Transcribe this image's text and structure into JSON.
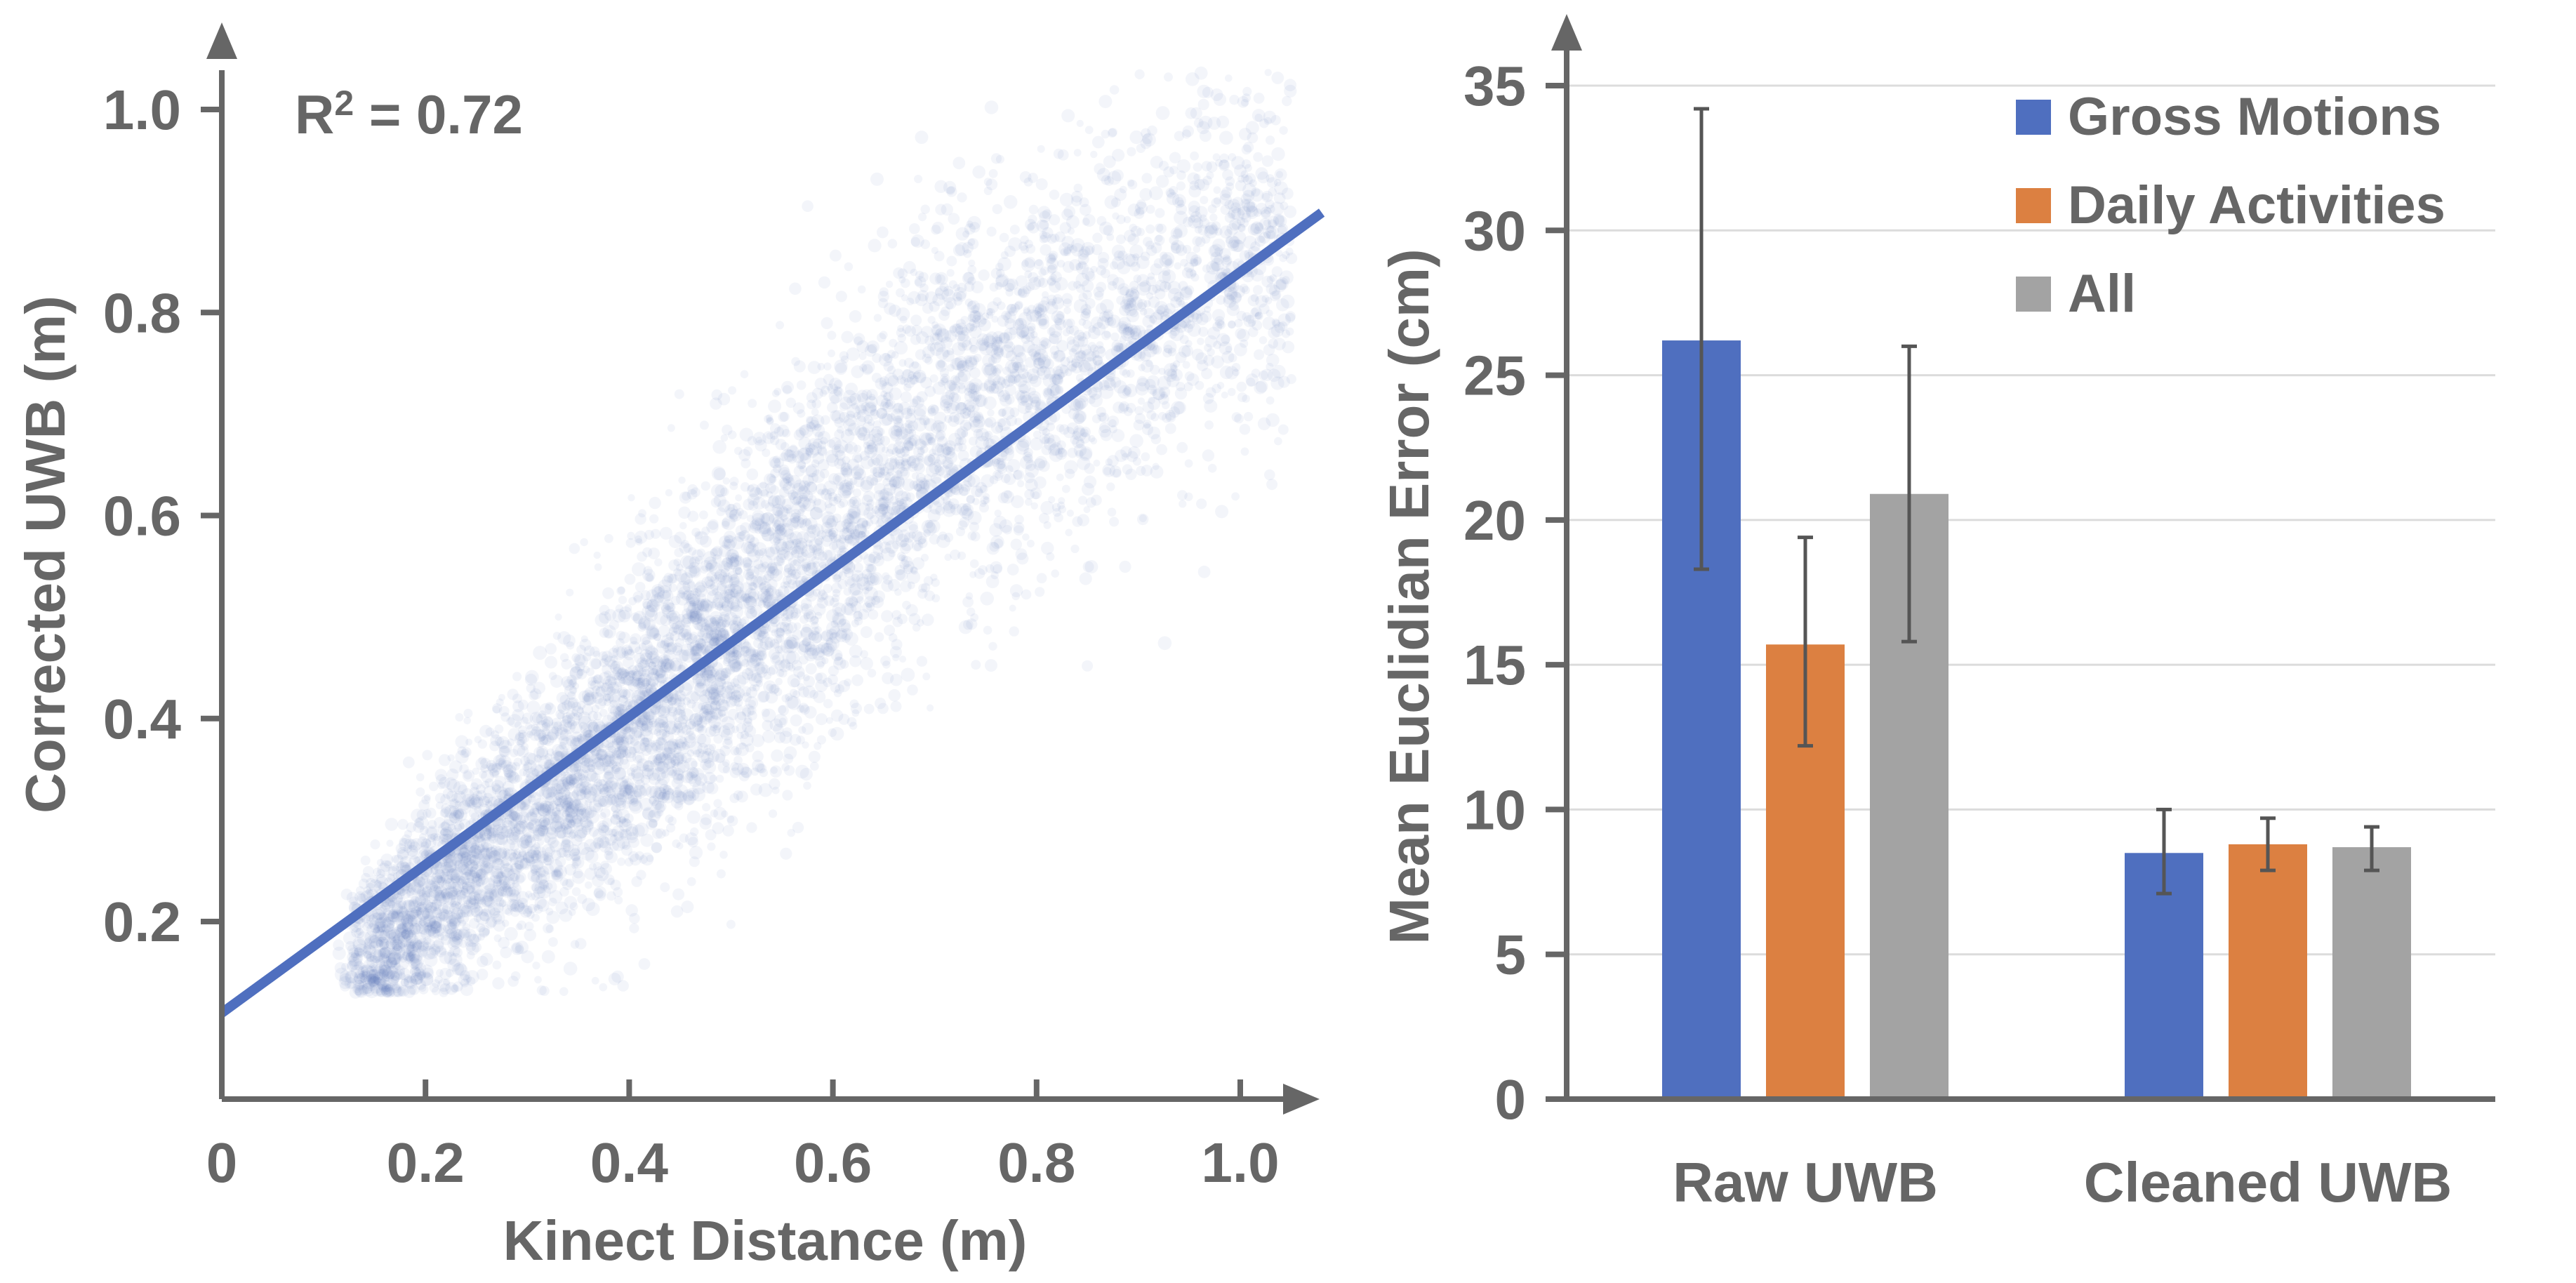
{
  "chart_data": [
    {
      "type": "scatter",
      "xlabel": "Kinect Distance (m)",
      "ylabel": "Corrected UWB (m)",
      "xlim": [
        0,
        1.08
      ],
      "ylim": [
        0.03,
        1.08
      ],
      "x_ticks": [
        "0",
        "0.2",
        "0.4",
        "0.6",
        "0.8",
        "1.0"
      ],
      "x_tick_values": [
        0,
        0.2,
        0.4,
        0.6,
        0.8,
        1.0
      ],
      "y_ticks": [
        "0.2",
        "0.4",
        "0.6",
        "0.8",
        "1.0"
      ],
      "y_tick_values": [
        0.2,
        0.4,
        0.6,
        0.8,
        1.0
      ],
      "annotation": {
        "prefix": "R",
        "sup": "2",
        "suffix": " = 0.72"
      },
      "fit_line": {
        "slope": 0.73,
        "intercept": 0.11,
        "x_range": [
          0,
          1.08
        ]
      },
      "point_cloud": {
        "color": "#4f6fbf",
        "x_range": [
          0.13,
          1.05
        ],
        "y_range": [
          0.13,
          1.05
        ],
        "density_center_x": [
          0.15,
          0.45,
          0.75,
          1.0
        ],
        "density_center_y": [
          0.17,
          0.42,
          0.7,
          0.85
        ],
        "spread_y": [
          0.04,
          0.08,
          0.1,
          0.09
        ],
        "weight": [
          1.3,
          1.6,
          1.0,
          0.7
        ]
      },
      "grid": false
    },
    {
      "type": "bar",
      "ylabel": "Mean Euclidian Error (cm)",
      "categories": [
        "Raw UWB",
        "Cleaned UWB"
      ],
      "ylim": [
        0,
        35
      ],
      "y_ticks": [
        "0",
        "5",
        "10",
        "15",
        "20",
        "25",
        "30",
        "35"
      ],
      "y_tick_values": [
        0,
        5,
        10,
        15,
        20,
        25,
        30,
        35
      ],
      "series": [
        {
          "name": "Gross Motions",
          "color": "#4f6fbf",
          "values": [
            26.2,
            8.5
          ],
          "err_low": [
            18.3,
            7.1
          ],
          "err_high": [
            34.2,
            10.0
          ]
        },
        {
          "name": "Daily Activities",
          "color": "#dc8041",
          "values": [
            15.7,
            8.8
          ],
          "err_low": [
            12.2,
            7.9
          ],
          "err_high": [
            19.4,
            9.7
          ]
        },
        {
          "name": "All",
          "color": "#a3a3a3",
          "values": [
            20.9,
            8.7
          ],
          "err_low": [
            15.8,
            7.9
          ],
          "err_high": [
            26.0,
            9.4
          ]
        }
      ],
      "legend_position": "top-right",
      "grid": true
    }
  ]
}
